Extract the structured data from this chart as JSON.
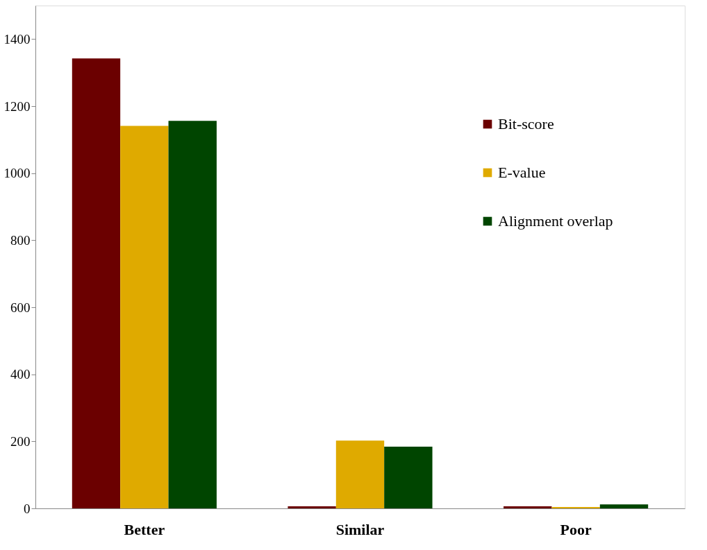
{
  "chart_data": {
    "type": "bar",
    "categories": [
      "Better",
      "Similar",
      "Poor"
    ],
    "series": [
      {
        "name": "Bit-score",
        "color": "#6b0000",
        "values": [
          1342,
          6,
          6
        ]
      },
      {
        "name": "E-value",
        "color": "#dfaa00",
        "values": [
          1141,
          202,
          4
        ]
      },
      {
        "name": "Alignment overlap",
        "color": "#004500",
        "values": [
          1156,
          184,
          12
        ]
      }
    ],
    "ylim": [
      0,
      1500
    ],
    "yticks": [
      0,
      200,
      400,
      600,
      800,
      1000,
      1200,
      1400
    ],
    "grid": false,
    "legend": "right"
  }
}
